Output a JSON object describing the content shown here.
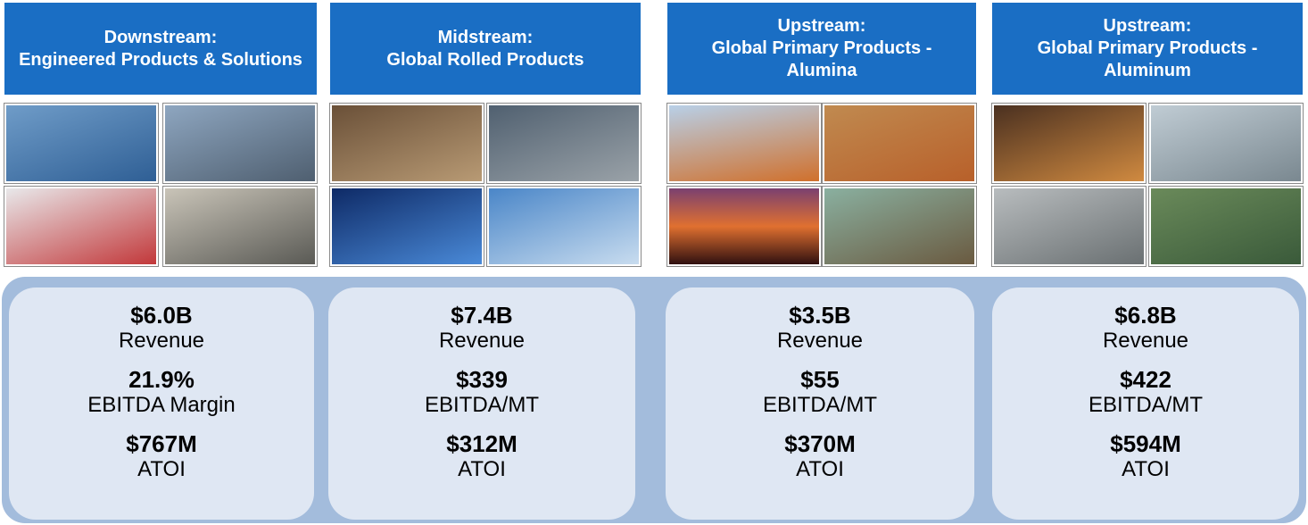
{
  "segments": [
    {
      "stage": "Downstream:",
      "name": "Engineered Products & Solutions",
      "metrics": [
        {
          "value": "$6.0B",
          "label": "Revenue"
        },
        {
          "value": "21.9%",
          "label": "EBITDA Margin"
        },
        {
          "value": "$767M",
          "label": "ATOI"
        }
      ]
    },
    {
      "stage": "Midstream:",
      "name": "Global Rolled Products",
      "metrics": [
        {
          "value": "$7.4B",
          "label": "Revenue"
        },
        {
          "value": "$339",
          "label": "EBITDA/MT"
        },
        {
          "value": "$312M",
          "label": "ATOI"
        }
      ]
    },
    {
      "stage": "Upstream:",
      "name": "Global Primary Products - Alumina",
      "metrics": [
        {
          "value": "$3.5B",
          "label": "Revenue"
        },
        {
          "value": "$55",
          "label": "EBITDA/MT"
        },
        {
          "value": "$370M",
          "label": "ATOI"
        }
      ]
    },
    {
      "stage": "Upstream:",
      "name": "Global Primary Products - Aluminum",
      "metrics": [
        {
          "value": "$6.8B",
          "label": "Revenue"
        },
        {
          "value": "$422",
          "label": "EBITDA/MT"
        },
        {
          "value": "$594M",
          "label": "ATOI"
        }
      ]
    }
  ]
}
